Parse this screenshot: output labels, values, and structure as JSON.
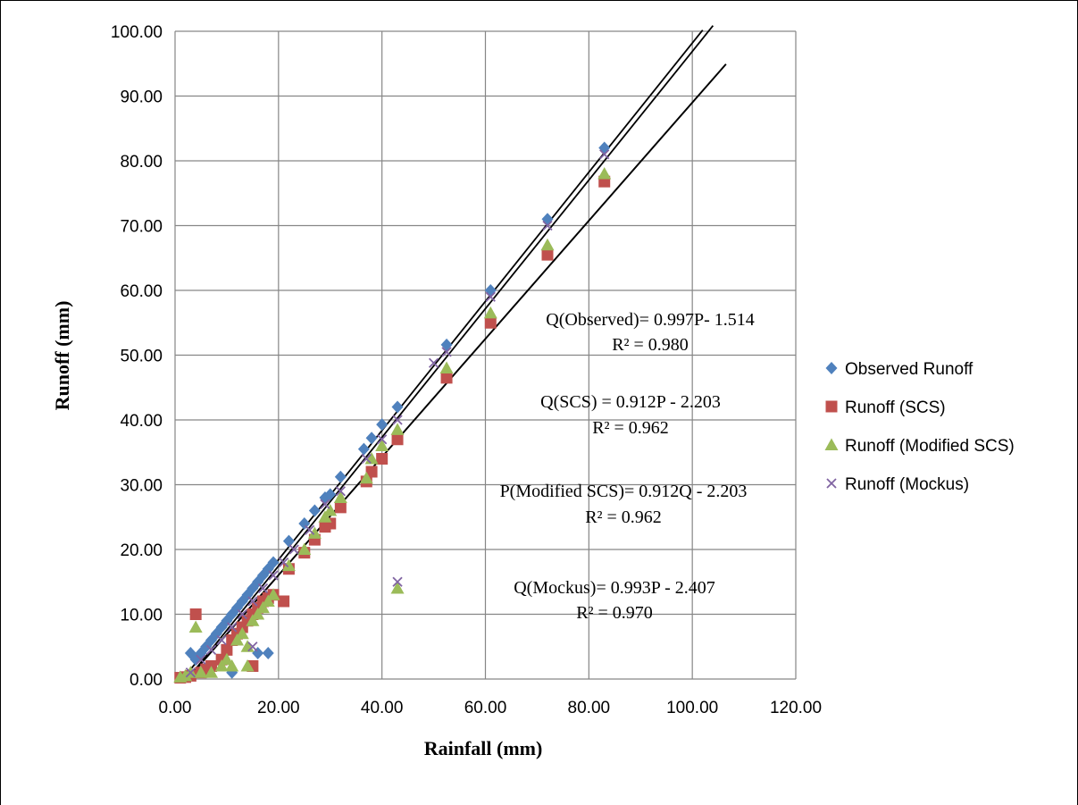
{
  "chart_data": {
    "type": "scatter",
    "xlabel": "Rainfall (mm)",
    "ylabel": "Runoff (mm)",
    "xlim": [
      0,
      120
    ],
    "ylim": [
      0,
      100
    ],
    "x_ticks": [
      "0.00",
      "20.00",
      "40.00",
      "60.00",
      "80.00",
      "100.00",
      "120.00"
    ],
    "y_ticks": [
      "0.00",
      "10.00",
      "20.00",
      "30.00",
      "40.00",
      "50.00",
      "60.00",
      "70.00",
      "80.00",
      "90.00",
      "100.00"
    ],
    "grid": true,
    "legend_position": "right",
    "series": [
      {
        "name": "Observed Runoff",
        "marker": "diamond",
        "color": "#4f81bd",
        "points": [
          [
            3,
            4
          ],
          [
            4,
            3
          ],
          [
            5,
            4
          ],
          [
            6,
            5
          ],
          [
            7,
            6
          ],
          [
            8,
            7
          ],
          [
            9,
            8
          ],
          [
            10,
            9
          ],
          [
            11,
            10
          ],
          [
            12,
            11
          ],
          [
            13,
            12
          ],
          [
            14,
            13
          ],
          [
            15,
            14
          ],
          [
            16,
            15
          ],
          [
            17,
            16
          ],
          [
            18,
            17
          ],
          [
            19,
            18
          ],
          [
            22,
            21.3
          ],
          [
            25,
            24
          ],
          [
            27,
            26
          ],
          [
            29,
            28
          ],
          [
            30,
            28.5
          ],
          [
            32,
            31.2
          ],
          [
            36.5,
            35.5
          ],
          [
            38,
            37.2
          ],
          [
            40,
            39.3
          ],
          [
            43,
            42
          ],
          [
            52.5,
            51.6
          ],
          [
            61,
            60
          ],
          [
            72,
            71
          ],
          [
            83,
            82
          ],
          [
            11,
            1
          ],
          [
            16,
            4
          ],
          [
            18,
            4
          ]
        ]
      },
      {
        "name": "Runoff (SCS)",
        "marker": "square",
        "color": "#c0504d",
        "points": [
          [
            1,
            0.2
          ],
          [
            2,
            0.3
          ],
          [
            3,
            0.5
          ],
          [
            4,
            10
          ],
          [
            5,
            1
          ],
          [
            6,
            1.5
          ],
          [
            7,
            2
          ],
          [
            9,
            3
          ],
          [
            10,
            4.5
          ],
          [
            11,
            6
          ],
          [
            12,
            7
          ],
          [
            13,
            8
          ],
          [
            14,
            9
          ],
          [
            15,
            10
          ],
          [
            16,
            11
          ],
          [
            17,
            12
          ],
          [
            18,
            12.5
          ],
          [
            19,
            13
          ],
          [
            21,
            12
          ],
          [
            22,
            17
          ],
          [
            25,
            19.5
          ],
          [
            27,
            21.5
          ],
          [
            29,
            23.5
          ],
          [
            30,
            24
          ],
          [
            32,
            26.5
          ],
          [
            37,
            30.5
          ],
          [
            38,
            32
          ],
          [
            40,
            34
          ],
          [
            43,
            37
          ],
          [
            52.5,
            46.5
          ],
          [
            61,
            55
          ],
          [
            72,
            65.5
          ],
          [
            83,
            76.8
          ],
          [
            15,
            2
          ]
        ]
      },
      {
        "name": "Runoff (Modified SCS)",
        "marker": "triangle",
        "color": "#9bbb59",
        "points": [
          [
            1,
            0.3
          ],
          [
            2,
            0.5
          ],
          [
            3,
            1
          ],
          [
            4,
            8
          ],
          [
            5,
            1
          ],
          [
            7,
            1
          ],
          [
            9,
            2
          ],
          [
            10,
            3
          ],
          [
            11,
            2
          ],
          [
            12,
            6
          ],
          [
            13,
            7
          ],
          [
            14,
            5
          ],
          [
            15,
            9
          ],
          [
            16,
            10
          ],
          [
            17,
            11
          ],
          [
            18,
            12
          ],
          [
            19,
            13
          ],
          [
            22,
            17.5
          ],
          [
            25,
            20
          ],
          [
            27,
            22.5
          ],
          [
            29,
            25
          ],
          [
            30,
            26
          ],
          [
            32,
            28
          ],
          [
            37,
            31
          ],
          [
            38,
            34
          ],
          [
            40,
            36
          ],
          [
            43,
            38.5
          ],
          [
            43,
            14
          ],
          [
            52.5,
            48
          ],
          [
            61,
            56.5
          ],
          [
            72,
            67
          ],
          [
            83,
            78
          ],
          [
            14,
            2
          ]
        ]
      },
      {
        "name": "Runoff (Mockus)",
        "marker": "x",
        "color": "#8064a2",
        "points": [
          [
            3,
            1
          ],
          [
            5,
            3
          ],
          [
            7,
            4.5
          ],
          [
            9,
            6
          ],
          [
            11,
            8
          ],
          [
            13,
            10
          ],
          [
            15,
            12
          ],
          [
            15,
            5
          ],
          [
            17,
            14
          ],
          [
            19,
            16
          ],
          [
            21,
            18
          ],
          [
            23,
            20
          ],
          [
            26,
            23
          ],
          [
            29,
            27
          ],
          [
            32,
            29
          ],
          [
            37,
            34
          ],
          [
            40,
            37
          ],
          [
            43,
            40
          ],
          [
            43,
            15
          ],
          [
            50,
            48.8
          ],
          [
            52.5,
            50.5
          ],
          [
            61,
            59
          ],
          [
            72,
            70
          ],
          [
            83,
            81
          ]
        ]
      }
    ],
    "trendlines": [
      {
        "series": "Observed Runoff",
        "slope": 0.997,
        "intercept": -1.514,
        "x_end": 102
      },
      {
        "series": "Runoff (Mockus)",
        "slope": 0.993,
        "intercept": -2.407,
        "x_end": 104
      },
      {
        "series": "Runoff (SCS)",
        "slope": 0.912,
        "intercept": -2.203,
        "x_end": 106.5
      },
      {
        "series": "Runoff (Modified SCS)",
        "slope": 0.912,
        "intercept": -2.203,
        "x_end": 106.5
      }
    ],
    "annotations": [
      "Q(Observed)= 0.997P- 1.514",
      "R² = 0.980",
      "Q(SCS) = 0.912P - 2.203",
      "R² = 0.962",
      "P(Modified SCS)= 0.912Q - 2.203",
      "R² = 0.962",
      "Q(Mockus)= 0.993P - 2.407",
      "R² = 0.970"
    ]
  }
}
